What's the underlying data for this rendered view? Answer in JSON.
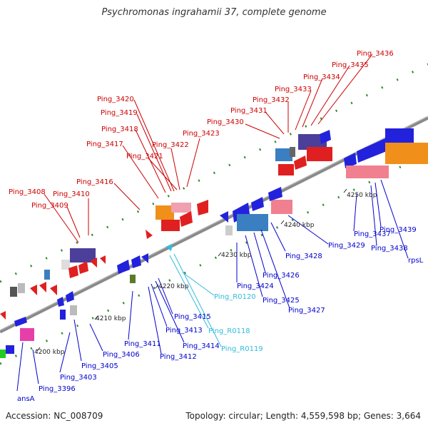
{
  "title": "Psychromonas ingrahamii 37, complete genome",
  "footer": {
    "accession": "Accession: NC_008709",
    "topology": "Topology: circular; Length: 4,559,598 bp; Genes: 3,664"
  },
  "scale_ticks": [
    "4200 kbp",
    "4210 kbp",
    "4220 kbp",
    "4230 kbp",
    "4240 kbp",
    "4250 kbp"
  ],
  "colors": {
    "backbone": "#8a8a8a",
    "dots": "#2e8b2e",
    "label_top": "#cc0000",
    "label_bottom": "#0000cc",
    "label_rna": "#33bbdd"
  },
  "labels_top": [
    "Ping_3408",
    "Ping_3409",
    "Ping_3410",
    "Ping_3416",
    "Ping_3417",
    "Ping_3418",
    "Ping_3419",
    "Ping_3420",
    "Ping_3421",
    "Ping_3422",
    "Ping_3423",
    "Ping_3430",
    "Ping_3431",
    "Ping_3432",
    "Ping_3433",
    "Ping_3434",
    "Ping_3435",
    "Ping_3436"
  ],
  "labels_bottom": [
    "ansA",
    "Ping_3396",
    "Ping_3403",
    "Ping_3405",
    "Ping_3406",
    "Ping_3411",
    "Ping_3412",
    "Ping_3413",
    "Ping_3414",
    "Ping_3415",
    "Ping_3424",
    "Ping_3425",
    "Ping_3426",
    "Ping_3427",
    "Ping_3428",
    "Ping_3429",
    "Ping_3437",
    "Ping_3438",
    "Ping_3439",
    "rpsL"
  ],
  "labels_rna": [
    "Ping_R0118",
    "Ping_R0119",
    "Ping_R0120"
  ]
}
